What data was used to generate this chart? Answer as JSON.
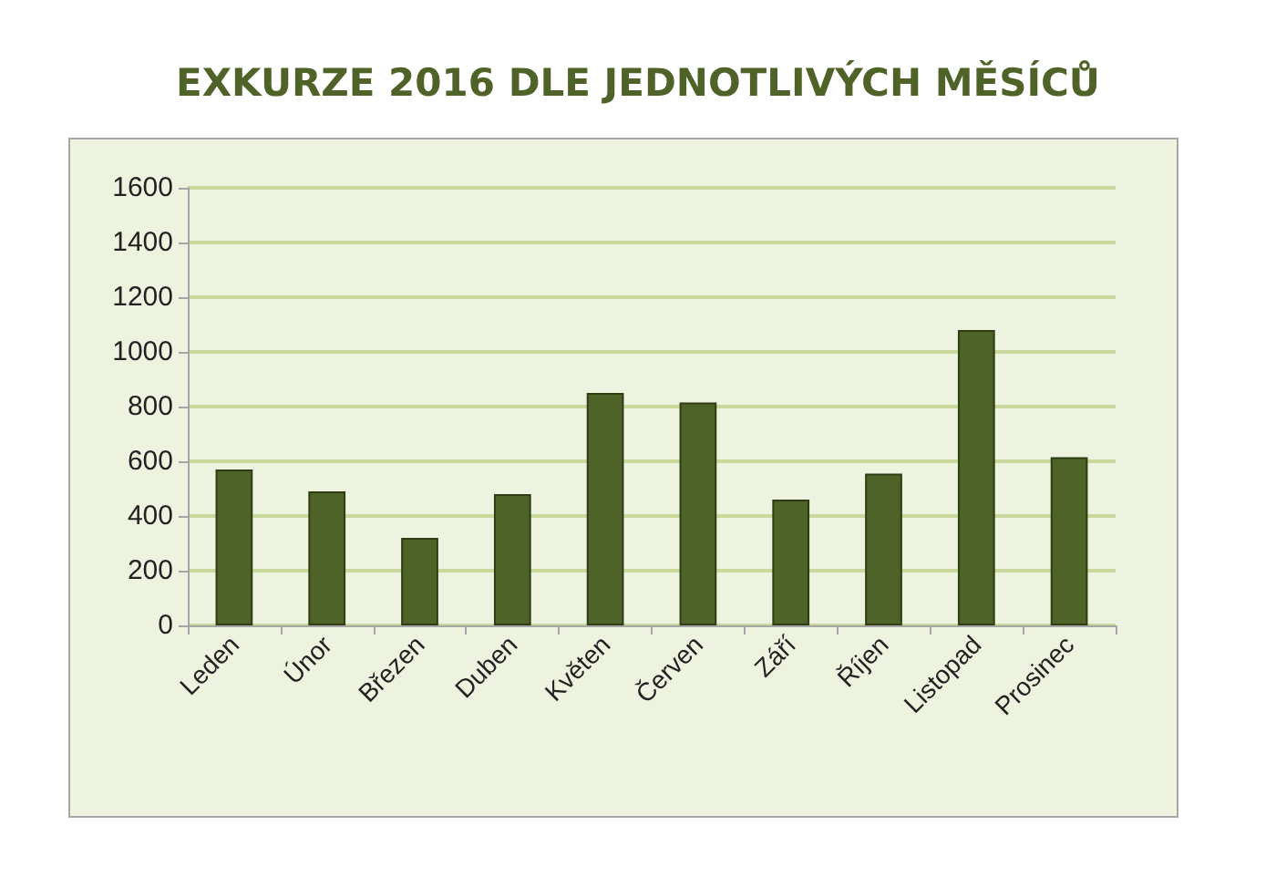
{
  "chart_data": {
    "type": "bar",
    "title": "EXKURZE 2016 DLE JEDNOTLIVÝCH MĚSÍCŮ",
    "categories": [
      "Leden",
      "Únor",
      "Březen",
      "Duben",
      "Květen",
      "Červen",
      "Září",
      "Říjen",
      "Listopad",
      "Prosinec"
    ],
    "values": [
      570,
      490,
      320,
      480,
      850,
      815,
      460,
      555,
      1080,
      615
    ],
    "color": "#4f6228",
    "ylim": [
      0,
      1600
    ],
    "yticks": [
      0,
      200,
      400,
      600,
      800,
      1000,
      1200,
      1400,
      1600
    ],
    "grid": "y"
  }
}
